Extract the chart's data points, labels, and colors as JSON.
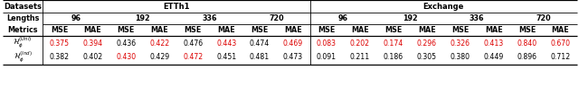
{
  "datasets_label": "Datasets",
  "etth1_label": "ETTh1",
  "exchange_label": "Exchange",
  "lengths_label": "Lengths",
  "metrics_label": "Metrics",
  "lengths": [
    "96",
    "192",
    "336",
    "720",
    "96",
    "192",
    "336",
    "720"
  ],
  "metrics_row": [
    "MSE",
    "MAE",
    "MSE",
    "MAE",
    "MSE",
    "MAE",
    "MSE",
    "MAE",
    "MSE",
    "MAE",
    "MSE",
    "MAE",
    "MSE",
    "MAE",
    "MSE",
    "MAE"
  ],
  "row_labels": [
    "$\\mathcal{H}_{\\phi}^{(Uni)}$",
    "$\\mathcal{H}_{\\phi}^{(Ind)}$"
  ],
  "data": [
    [
      "0.375",
      "0.394",
      "0.436",
      "0.422",
      "0.476",
      "0.443",
      "0.474",
      "0.469",
      "0.083",
      "0.202",
      "0.174",
      "0.296",
      "0.326",
      "0.413",
      "0.840",
      "0.670"
    ],
    [
      "0.382",
      "0.402",
      "0.430",
      "0.429",
      "0.472",
      "0.451",
      "0.481",
      "0.473",
      "0.091",
      "0.211",
      "0.186",
      "0.305",
      "0.380",
      "0.449",
      "0.896",
      "0.712"
    ]
  ],
  "red_uni": [
    0,
    1,
    3,
    5,
    7,
    8,
    9,
    10,
    11,
    12,
    13,
    14,
    15
  ],
  "red_ind": [
    2,
    4
  ],
  "red_color": "#dd0000",
  "black": "#000000",
  "white": "#ffffff",
  "fs_title": 6.0,
  "fs_header": 5.8,
  "fs_data": 5.6,
  "fig_w": 6.4,
  "fig_h": 1.07,
  "dpi": 100
}
